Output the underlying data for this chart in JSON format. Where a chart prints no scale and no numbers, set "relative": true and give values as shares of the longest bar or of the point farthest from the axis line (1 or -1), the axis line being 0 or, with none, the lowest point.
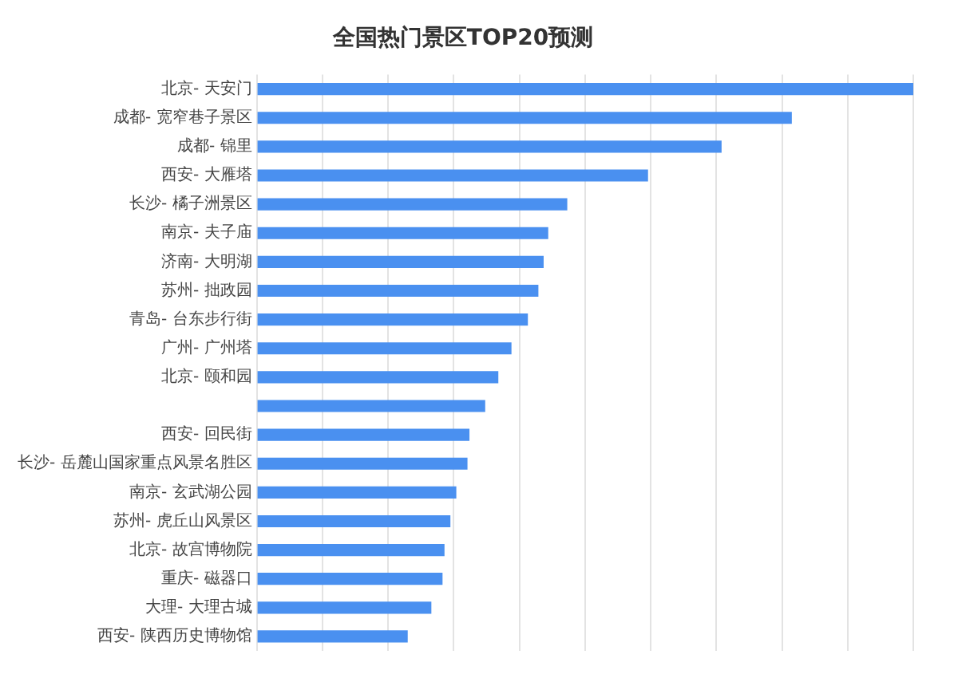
{
  "chart_data": {
    "type": "bar",
    "orientation": "horizontal",
    "relative": true,
    "title": "全国热门景区TOP20预测",
    "categories": [
      "北京- 天安门",
      "成都- 宽窄巷子景区",
      "成都- 锦里",
      "西安- 大雁塔",
      "长沙- 橘子洲景区",
      "南京- 夫子庙",
      "济南- 大明湖",
      "苏州- 拙政园",
      "青岛- 台东步行街",
      "广州- 广州塔",
      "北京- 颐和园",
      null,
      "西安- 回民街",
      "长沙- 岳麓山国家重点风景名胜区",
      "南京- 玄武湖公园",
      "苏州- 虎丘山风景区",
      "北京- 故宫博物院",
      "重庆- 磁器口",
      "大理- 大理古城",
      "西安- 陕西历史博物馆"
    ],
    "values": [
      1.0,
      0.815,
      0.708,
      0.596,
      0.473,
      0.444,
      0.437,
      0.429,
      0.413,
      0.388,
      0.368,
      0.348,
      0.324,
      0.321,
      0.304,
      0.295,
      0.286,
      0.283,
      0.266,
      0.23
    ],
    "color": "#4a90f0",
    "grid": "x"
  }
}
